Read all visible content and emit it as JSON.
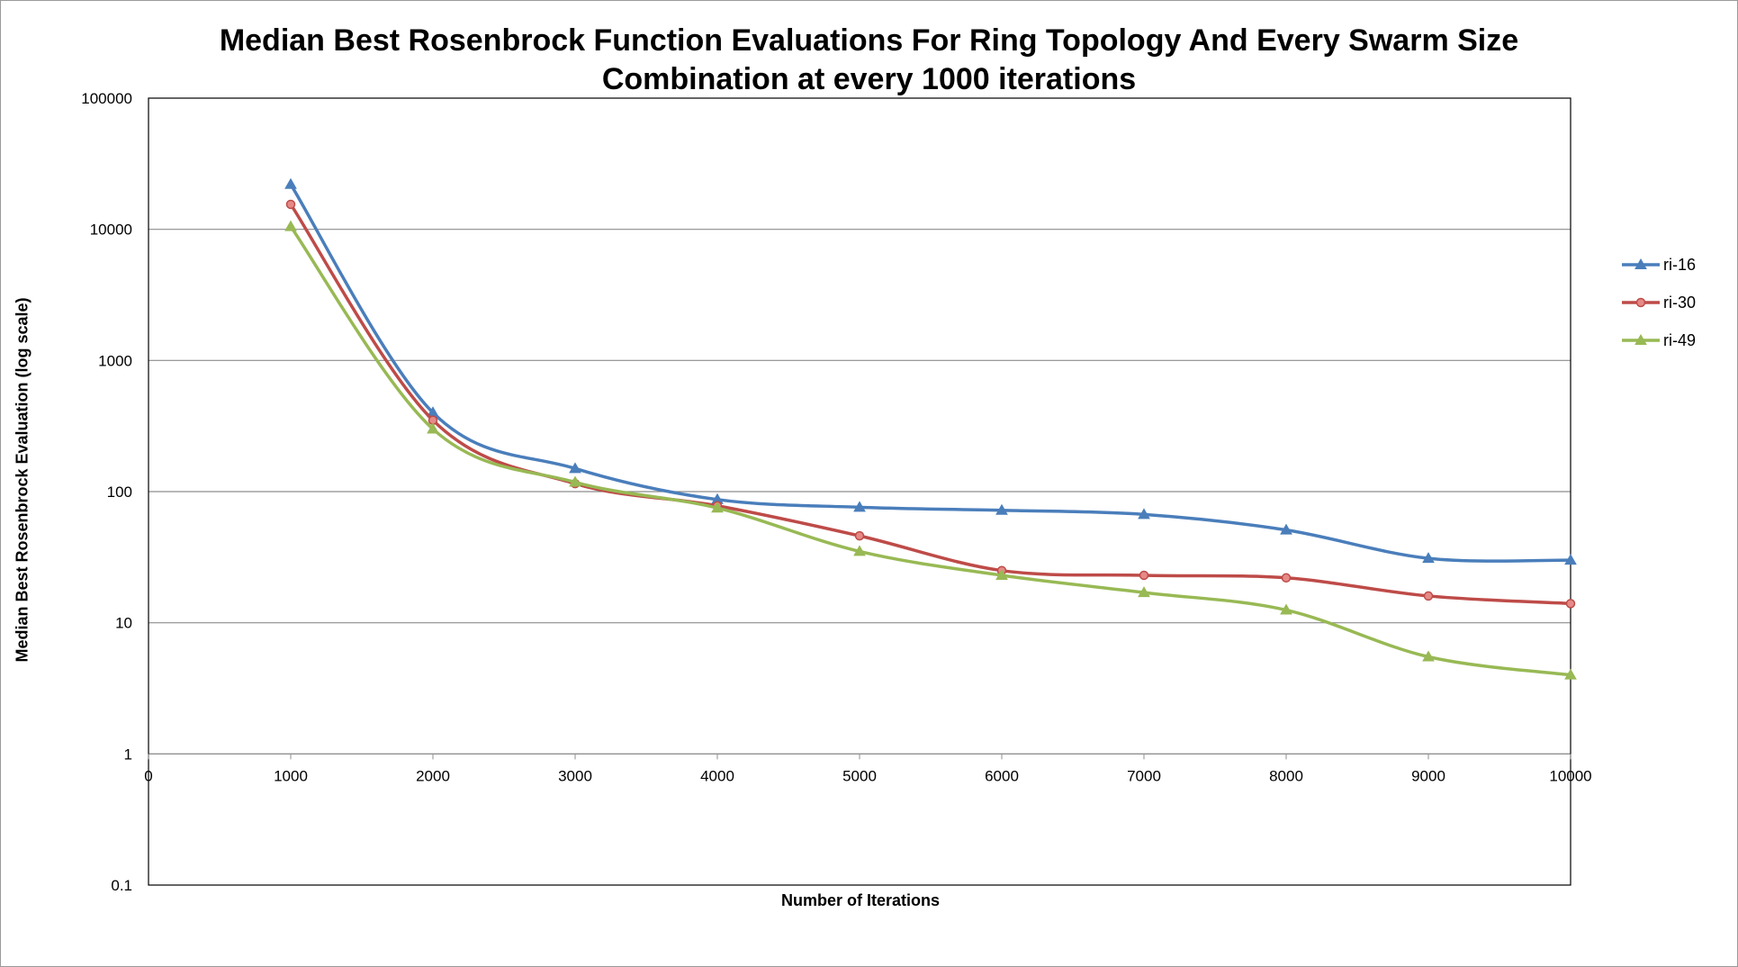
{
  "chart_data": {
    "type": "line",
    "title_lines": [
      "Median Best Rosenbrock Function Evaluations For Ring Topology And Every Swarm Size",
      "Combination at every 1000 iterations"
    ],
    "xlabel": "Number of Iterations",
    "ylabel": "Median Best Rosenbrock Evaluation (log scale)",
    "xlim": [
      0,
      10000
    ],
    "ylim": [
      0.1,
      100000
    ],
    "yscale": "log",
    "x_ticks": [
      "0",
      "1000",
      "2000",
      "3000",
      "4000",
      "5000",
      "6000",
      "7000",
      "8000",
      "9000",
      "10000"
    ],
    "y_ticks": [
      "0.1",
      "1",
      "10",
      "100",
      "1000",
      "10000",
      "100000"
    ],
    "grid": "horizontal",
    "legend_position": "right",
    "x": [
      1000,
      2000,
      3000,
      4000,
      5000,
      6000,
      7000,
      8000,
      9000,
      10000
    ],
    "series": [
      {
        "name": "ri-16",
        "color": "#4a7ebb",
        "marker": "triangle",
        "values": [
          22000,
          400,
          150,
          87,
          76,
          72,
          67,
          51,
          31,
          30
        ]
      },
      {
        "name": "ri-30",
        "color": "#be4b48",
        "marker": "circle",
        "values": [
          15500,
          350,
          115,
          78,
          46,
          25,
          23,
          22,
          16,
          14
        ]
      },
      {
        "name": "ri-49",
        "color": "#98b954",
        "marker": "triangle",
        "values": [
          10500,
          300,
          118,
          75,
          35,
          23,
          17,
          12.5,
          5.5,
          4
        ]
      }
    ]
  }
}
